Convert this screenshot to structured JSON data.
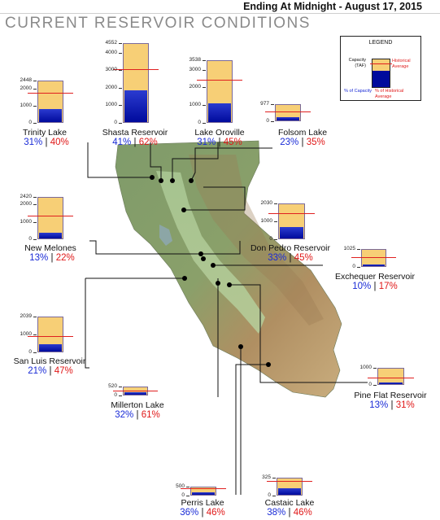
{
  "header": {
    "date_text": "Ending At Midnight - August 17, 2015"
  },
  "title": "CURRENT RESERVOIR CONDITIONS",
  "legend": {
    "title": "LEGEND",
    "capacity_label": "Capacity (TAF)",
    "historical_label": "Historical Average",
    "pct_capacity_label": "% of Capacity",
    "pct_hist_label": "% of Historical Average"
  },
  "colors": {
    "capacity": "#f7cf76",
    "storage": "#000a9c",
    "historical": "#e02020",
    "pct_capacity": "#1a2bd6",
    "pct_hist": "#e01818"
  },
  "reservoirs": [
    {
      "name": "Trinity Lake",
      "capacity": 2448,
      "tick_labels": [
        "2448",
        "2000",
        "1000",
        "0"
      ],
      "pct_capacity": "31%",
      "pct_hist": "40%",
      "sep": " | "
    },
    {
      "name": "Shasta Reservoir",
      "capacity": 4552,
      "tick_labels": [
        "4552",
        "4000",
        "3000",
        "2000",
        "1000",
        "0"
      ],
      "pct_capacity": "41%",
      "pct_hist": "62%",
      "sep": " | "
    },
    {
      "name": "Lake Oroville",
      "capacity": 3538,
      "tick_labels": [
        "3538",
        "3000",
        "2000",
        "1000",
        "0"
      ],
      "pct_capacity": "31%",
      "pct_hist": "45%",
      "sep": " | "
    },
    {
      "name": "Folsom Lake",
      "capacity": 977,
      "tick_labels": [
        "977",
        "0"
      ],
      "pct_capacity": "23%",
      "pct_hist": "35%",
      "sep": " | "
    },
    {
      "name": "New Melones",
      "capacity": 2420,
      "tick_labels": [
        "2420",
        "2000",
        "1000",
        "0"
      ],
      "pct_capacity": "13%",
      "pct_hist": "22%",
      "sep": " | "
    },
    {
      "name": "Don Pedro Reservoir",
      "capacity": 2030,
      "tick_labels": [
        "2030",
        "1000",
        "0"
      ],
      "pct_capacity": "33%",
      "pct_hist": "45%",
      "sep": " | "
    },
    {
      "name": "Exchequer Reservoir",
      "capacity": 1025,
      "tick_labels": [
        "1025",
        "0"
      ],
      "pct_capacity": "10%",
      "pct_hist": "17%",
      "sep": " | "
    },
    {
      "name": "San Luis Reservoir",
      "capacity": 2039,
      "tick_labels": [
        "2039",
        "1000",
        "0"
      ],
      "pct_capacity": "21%",
      "pct_hist": "47%",
      "sep": " | "
    },
    {
      "name": "Millerton Lake",
      "capacity": 520,
      "tick_labels": [
        "520",
        "0"
      ],
      "pct_capacity": "32%",
      "pct_hist": "61%",
      "sep": " | "
    },
    {
      "name": "Pine Flat Reservoir",
      "capacity": 1000,
      "tick_labels": [
        "1000",
        "0"
      ],
      "pct_capacity": "13%",
      "pct_hist": "31%",
      "sep": " | "
    },
    {
      "name": "Perris Lake",
      "capacity": 500,
      "tick_labels": [
        "500",
        "0"
      ],
      "pct_capacity": "36%",
      "pct_hist": "46%",
      "sep": " | "
    },
    {
      "name": "Castaic Lake",
      "capacity": 325,
      "tick_labels": [
        "325",
        "0"
      ],
      "pct_capacity": "38%",
      "pct_hist": "46%",
      "sep": " | "
    }
  ]
}
